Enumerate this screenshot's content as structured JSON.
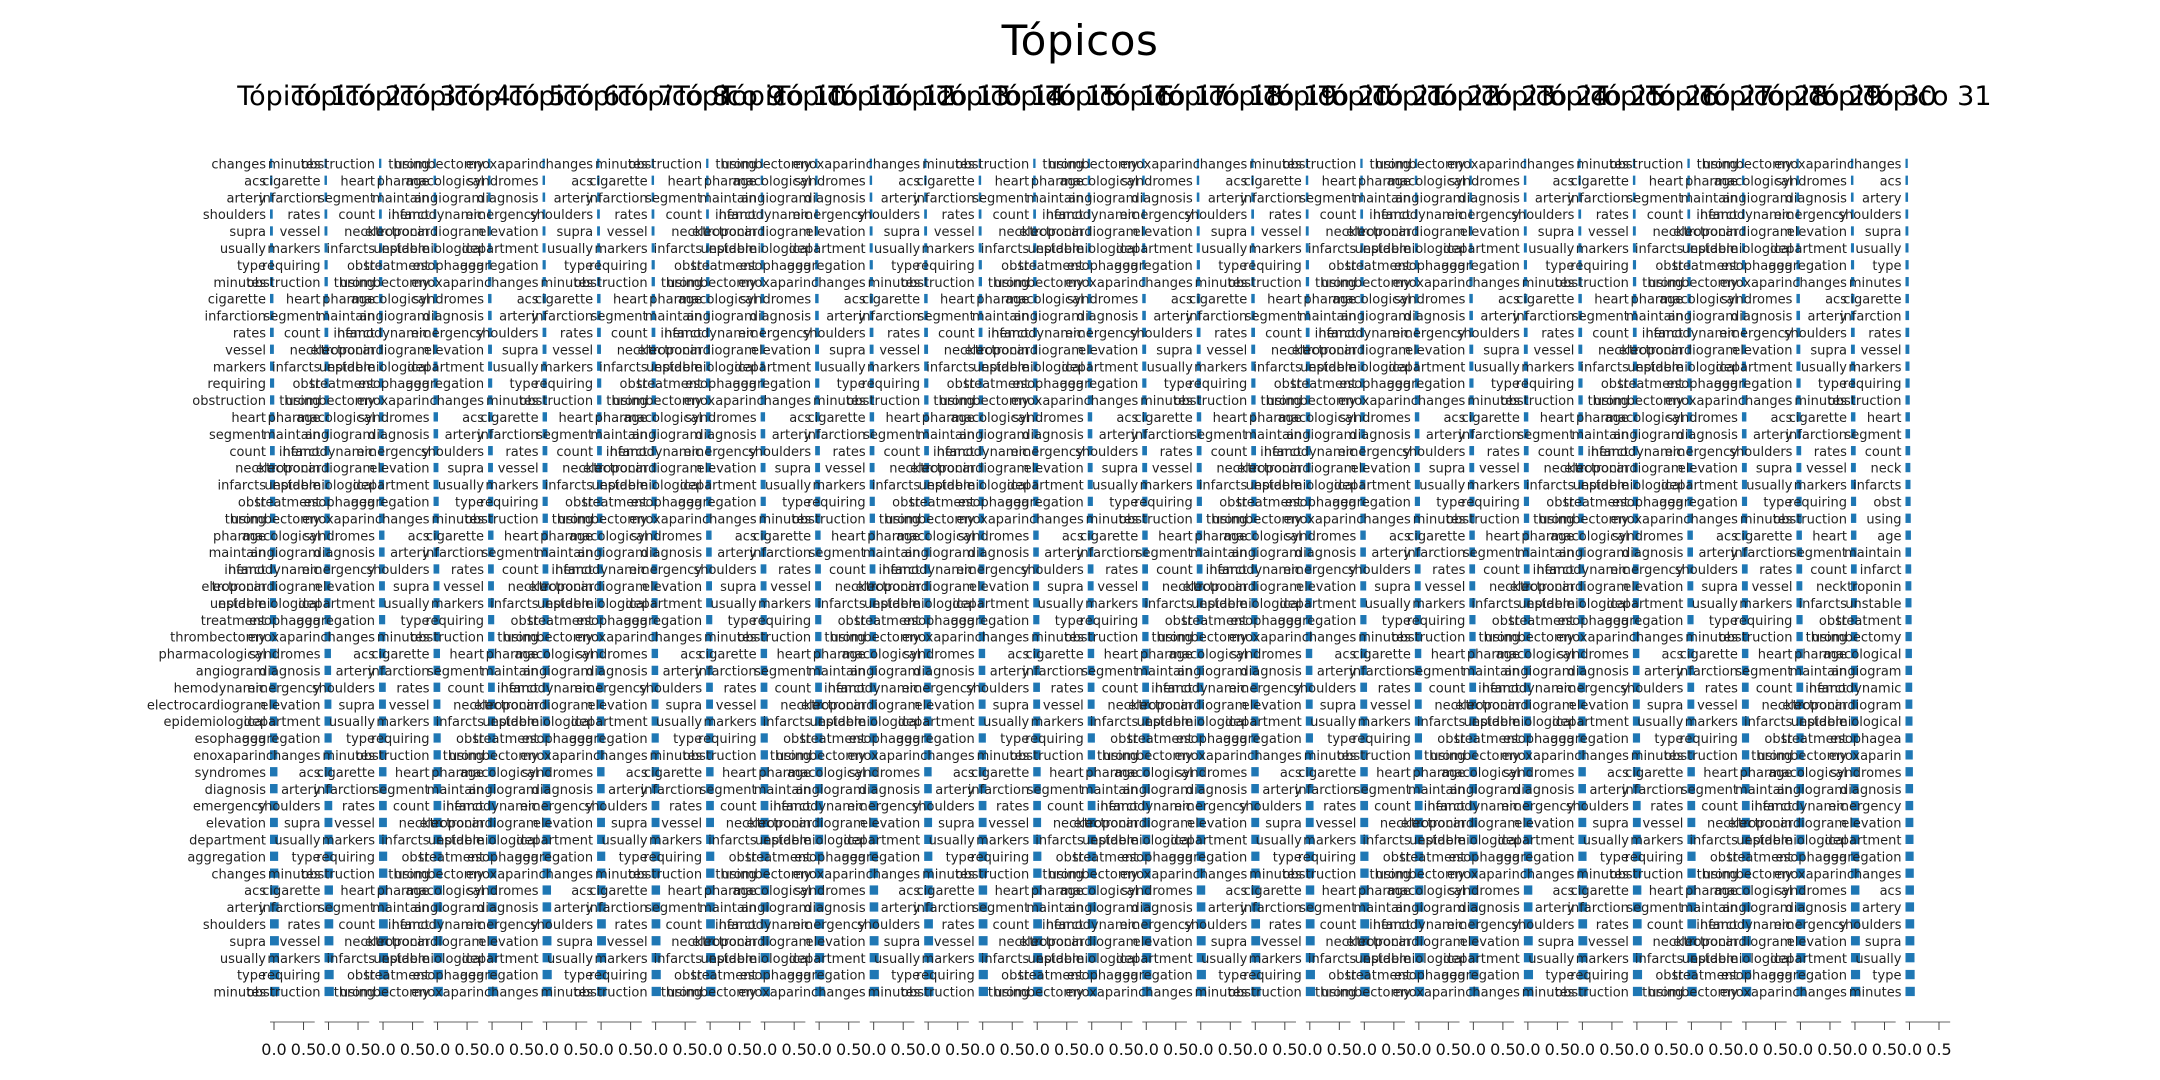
{
  "figure": {
    "suptitle": "Tópicos"
  },
  "chart_data": {
    "type": "bar",
    "orientation": "horizontal",
    "title": "Tópicos",
    "panel_count": 31,
    "panel_title_prefix": "Tópico",
    "panel_titles": [
      "Tópico 1",
      "Tópico 2",
      "Tópico 3",
      "Tópico 4",
      "Tópico 5",
      "Tópico 6",
      "Tópico 7",
      "Tópico 8",
      "Tópico 9",
      "Tópico 10",
      "Tópico 11",
      "Tópico 12",
      "Tópico 13",
      "Tópico 14",
      "Tópico 15",
      "Tópico 16",
      "Tópico 17",
      "Tópico 18",
      "Tópico 19",
      "Tópico 20",
      "Tópico 21",
      "Tópico 22",
      "Tópico 23",
      "Tópico 24",
      "Tópico 25",
      "Tópico 26",
      "Tópico 27",
      "Tópico 28",
      "Tópico 29",
      "Tópico 30",
      "Tópico 31"
    ],
    "xlim": [
      0,
      0.5
    ],
    "x_ticks": [
      "0.0",
      "0.5"
    ],
    "bar_color": "#1f77b4",
    "note_visible_terms_sample": [
      "changes",
      "acs",
      "artery",
      "shoulders",
      "supra",
      "usually",
      "type",
      "minutes",
      "cigarette",
      "infarction",
      "rates",
      "vessel",
      "markers",
      "requiring",
      "obstruction",
      "heart",
      "segment",
      "count",
      "neck",
      "infarcts",
      "obst",
      "using",
      "age",
      "maintain",
      "infarct",
      "troponin",
      "unstable",
      "treatment",
      "thrombectomy",
      "pharmacological",
      "angiogram",
      "hemodynamic",
      "electrocardiogram",
      "epidemiological",
      "esophagea",
      "enoxaparin",
      "syndromes",
      "diagnosis",
      "emergency",
      "elevation",
      "department",
      "aggregation"
    ]
  }
}
